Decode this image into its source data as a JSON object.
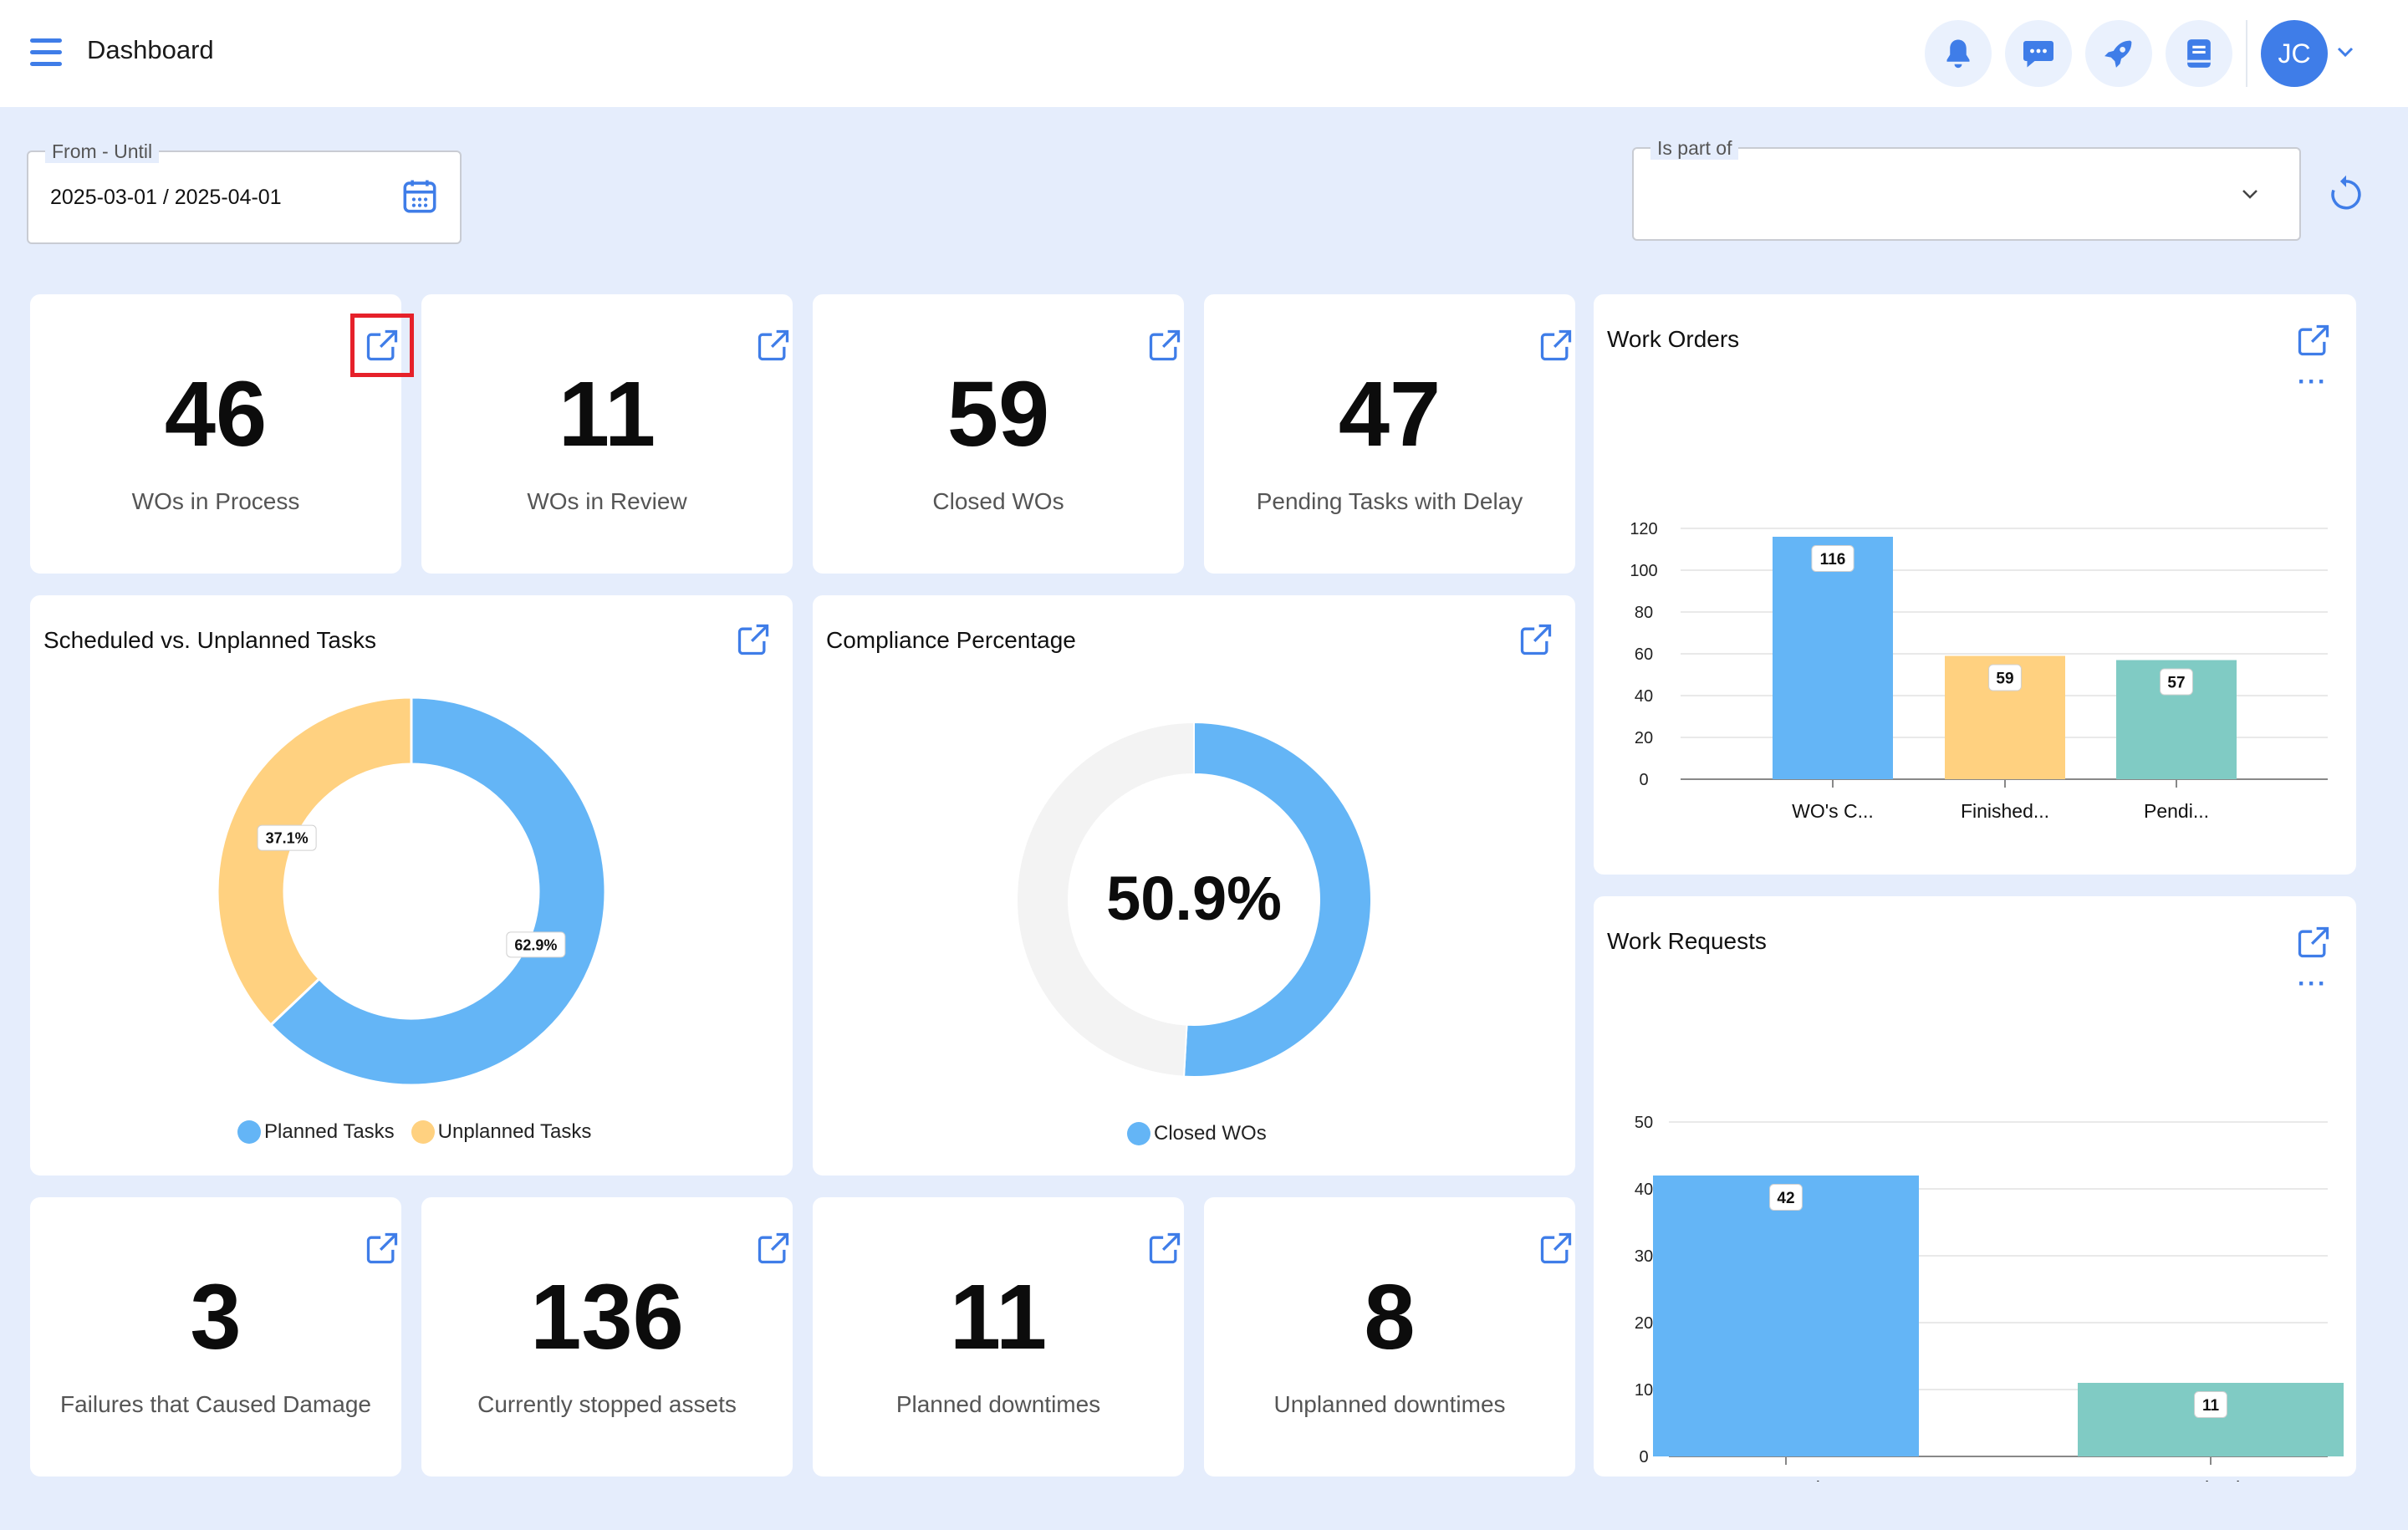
{
  "header": {
    "title": "Dashboard",
    "avatar_initials": "JC",
    "icons": [
      "bell-icon",
      "chat-icon",
      "rocket-icon",
      "book-icon"
    ]
  },
  "filters": {
    "date_range": {
      "label": "From - Until",
      "value": "2025-03-01 / 2025-04-01"
    },
    "is_part_of": {
      "label": "Is part of",
      "value": ""
    }
  },
  "kpis_top": [
    {
      "value": "46",
      "label": "WOs in Process"
    },
    {
      "value": "11",
      "label": "WOs in Review"
    },
    {
      "value": "59",
      "label": "Closed WOs"
    },
    {
      "value": "47",
      "label": "Pending Tasks with Delay"
    }
  ],
  "kpis_bottom": [
    {
      "value": "3",
      "label": "Failures that Caused Damage"
    },
    {
      "value": "136",
      "label": "Currently stopped assets"
    },
    {
      "value": "11",
      "label": "Planned downtimes"
    },
    {
      "value": "8",
      "label": "Unplanned downtimes"
    }
  ],
  "scheduled_card": {
    "title": "Scheduled vs. Unplanned Tasks"
  },
  "compliance_card": {
    "title": "Compliance Percentage"
  },
  "work_orders_card": {
    "title": "Work Orders",
    "more": "···"
  },
  "work_requests_card": {
    "title": "Work Requests",
    "more": "···"
  },
  "colors": {
    "blue": "#64b5f6",
    "orange": "#ffd180",
    "teal": "#80cbc4",
    "accent": "#3f7de8"
  },
  "chart_data": [
    {
      "type": "pie",
      "title": "Scheduled vs. Unplanned Tasks",
      "slices": [
        {
          "name": "Planned Tasks",
          "value": 62.9,
          "label": "62.9%",
          "color": "#64b5f6"
        },
        {
          "name": "Unplanned Tasks",
          "value": 37.1,
          "label": "37.1%",
          "color": "#ffd180"
        }
      ],
      "legend": "bottom"
    },
    {
      "type": "pie",
      "title": "Compliance Percentage",
      "slices": [
        {
          "name": "Closed WOs",
          "value": 50.9,
          "color": "#64b5f6"
        },
        {
          "name": "",
          "value": 49.1,
          "color": "#f3f3f3"
        }
      ],
      "center_label": "50.9%",
      "legend_label": "Closed WOs",
      "legend": "bottom"
    },
    {
      "type": "bar",
      "title": "Work Orders",
      "categories": [
        "WO's C...",
        "Finished...",
        "Pendi..."
      ],
      "values": [
        116,
        59,
        57
      ],
      "colors": [
        "#64b5f6",
        "#ffd180",
        "#80cbc4"
      ],
      "ylim": [
        0,
        120
      ],
      "yticks": [
        "0",
        "20",
        "40",
        "60",
        "80",
        "100",
        "120"
      ],
      "grid": true
    },
    {
      "type": "bar",
      "title": "Work Requests",
      "categories": [
        "Created",
        "Solved"
      ],
      "values": [
        42,
        11
      ],
      "colors": [
        "#64b5f6",
        "#80cbc4"
      ],
      "ylim": [
        0,
        50
      ],
      "yticks": [
        "0",
        "10",
        "20",
        "30",
        "40",
        "50"
      ],
      "grid": true
    }
  ]
}
